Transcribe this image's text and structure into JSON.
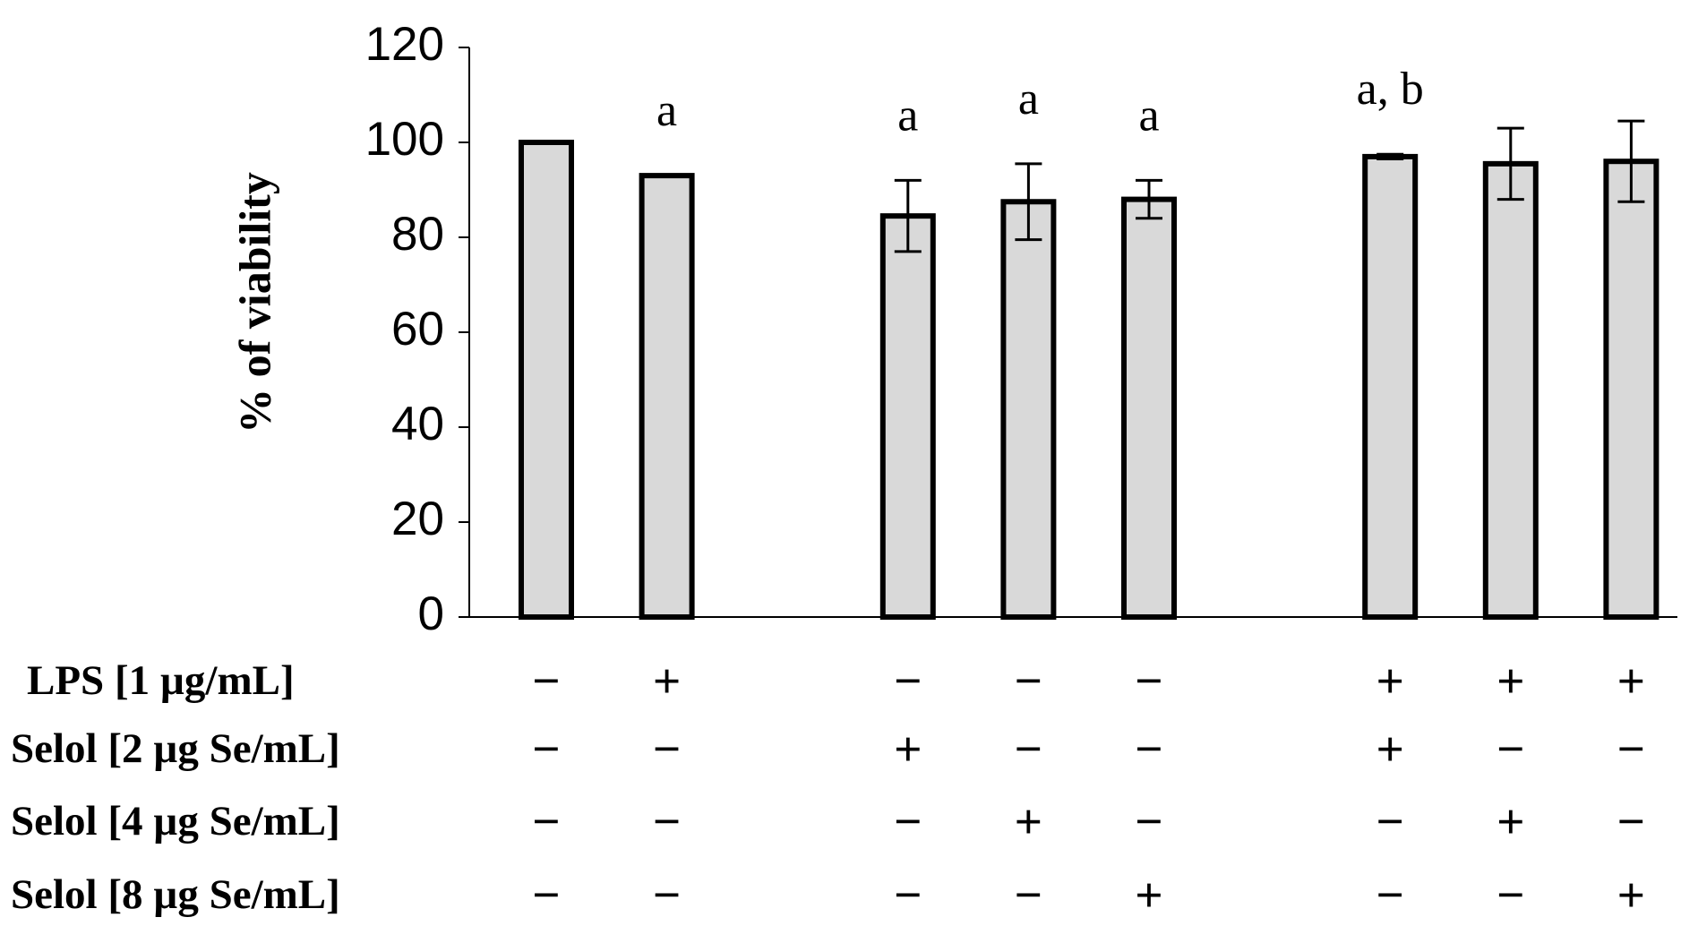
{
  "chart_data": {
    "type": "bar",
    "ylabel": "% of viability",
    "categories": [
      null,
      null,
      null,
      null,
      null,
      null,
      null,
      null,
      null,
      null
    ],
    "values": [
      100,
      93,
      null,
      84.5,
      87.5,
      88,
      null,
      97,
      95.5,
      96
    ],
    "errors": [
      0,
      0,
      null,
      7.5,
      8,
      4,
      null,
      0.5,
      7.5,
      8.5
    ],
    "annotations": [
      null,
      "a",
      null,
      "a",
      "a",
      "a",
      null,
      "a, b",
      null,
      null
    ],
    "color": "#d9d9d9",
    "ylim": [
      0,
      120
    ],
    "yticks": [
      0,
      20,
      40,
      60,
      80,
      100,
      120
    ],
    "treatments": [
      {
        "label": "LPS [1 µg/mL]",
        "marks": [
          "−",
          "+",
          null,
          "−",
          "−",
          "−",
          null,
          "+",
          "+",
          "+"
        ]
      },
      {
        "label": "Selol [2 µg Se/mL]",
        "marks": [
          "−",
          "−",
          null,
          "+",
          "−",
          "−",
          null,
          "+",
          "−",
          "−"
        ]
      },
      {
        "label": "Selol [4 µg Se/mL]",
        "marks": [
          "−",
          "−",
          null,
          "−",
          "+",
          "−",
          null,
          "−",
          "+",
          "−"
        ]
      },
      {
        "label": "Selol [8 µg Se/mL]",
        "marks": [
          "−",
          "−",
          null,
          "−",
          "−",
          "+",
          null,
          "−",
          "−",
          "+"
        ]
      }
    ]
  }
}
